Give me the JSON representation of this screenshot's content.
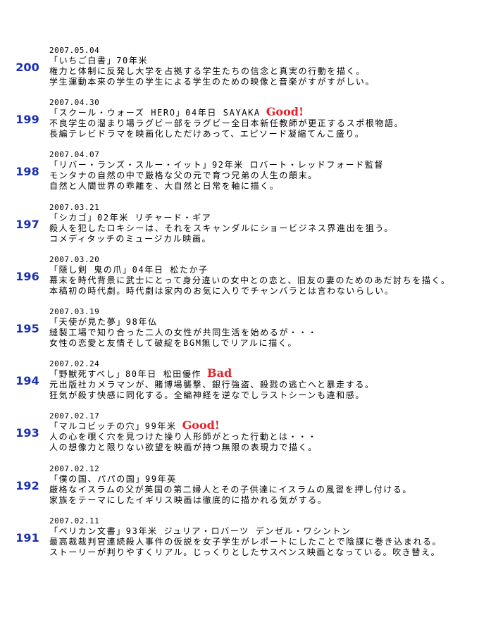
{
  "entries": [
    {
      "number": "200",
      "date": "2007.05.04",
      "title": "「いちご白書」70年米",
      "lines": [
        "権力と体制に反発し大学を占拠する学生たちの信念と真実の行動を描く。",
        "学生運動本来の学生の学生による学生のための映像と音楽がすがすがしい。"
      ]
    },
    {
      "number": "199",
      "date": "2007.04.30",
      "title": "「スクール・ウォーズ HERO」04年日 SAYAKA",
      "rating": "Good!",
      "lines": [
        "不良学生の溜まり場ラグビー部をラグビー全日本新任教師が更正するスポ根物語。",
        "長編テレビドラマを映画化しただけあって、エピソード凝縮てんこ盛り。"
      ]
    },
    {
      "number": "198",
      "date": "2007.04.07",
      "title": "「リバー・ランズ・スルー・イット」92年米 ロバート・レッドフォード監督",
      "lines": [
        "モンタナの自然の中で厳格な父の元で育つ兄弟の人生の顛末。",
        "自然と人間世界の乖離を、大自然と日常を軸に描く。"
      ]
    },
    {
      "number": "197",
      "date": "2007.03.21",
      "title": "「シカゴ」02年米 リチャード・ギア",
      "lines": [
        "殺人を犯したロキシーは、それをスキャンダルにショービジネス界進出を狙う。",
        "コメディタッチのミュージカル映画。"
      ]
    },
    {
      "number": "196",
      "date": "2007.03.20",
      "title": "「隠し剣 鬼の爪」04年日 松たか子",
      "lines": [
        "幕末を時代背景に武士にとって身分違いの女中との恋と、旧友の妻のためのあだ討ちを描く。",
        "本稿初の時代劇。時代劇は家内のお気に入りでチャンバラとは言わないらしい。"
      ]
    },
    {
      "number": "195",
      "date": "2007.03.19",
      "title": "「天使が見た夢」98年仏",
      "lines": [
        "縫製工場で知り合った二人の女性が共同生活を始めるが・・・",
        "女性の恋愛と友情そして破綻をBGM無しでリアルに描く。"
      ]
    },
    {
      "number": "194",
      "date": "2007.02.24",
      "title": "「野獣死すべし」80年日 松田優作",
      "rating": "Bad",
      "lines": [
        "元出版社カメラマンが、賭博場襲撃、銀行強盗、殺戮の逃亡へと暴走する。",
        "狂気が殺す快感に同化する。全編神経を逆なでしラストシーンも違和感。"
      ]
    },
    {
      "number": "193",
      "date": "2007.02.17",
      "title": "「マルコビッチの穴」99年米",
      "rating": "Good!",
      "lines": [
        "人の心を覗く穴を見つけた操り人形師がとった行動とは・・・",
        "人の想像力と限りない欲望を映画が持つ無限の表現力で描く。"
      ]
    },
    {
      "number": "192",
      "date": "2007.02.12",
      "title": "「僕の国、パパの国」99年英",
      "lines": [
        "厳格なイスラムの父が英国の第二婦人とその子供達にイスラムの風習を押し付ける。",
        "家族をテーマにしたイギリス映画は徹底的に描かれる気がする。"
      ]
    },
    {
      "number": "191",
      "date": "2007.02.11",
      "title": "「ペリカン文書」93年米 ジュリア・ロバーツ デンゼル・ワシントン",
      "lines": [
        "最高裁裁判官連続殺人事件の仮説を女子学生がレポートにしたことで陰謀に巻き込まれる。",
        "ストーリーが判りやすくリアル。じっくりとしたサスペンス映画となっている。吹き替え。"
      ]
    }
  ]
}
